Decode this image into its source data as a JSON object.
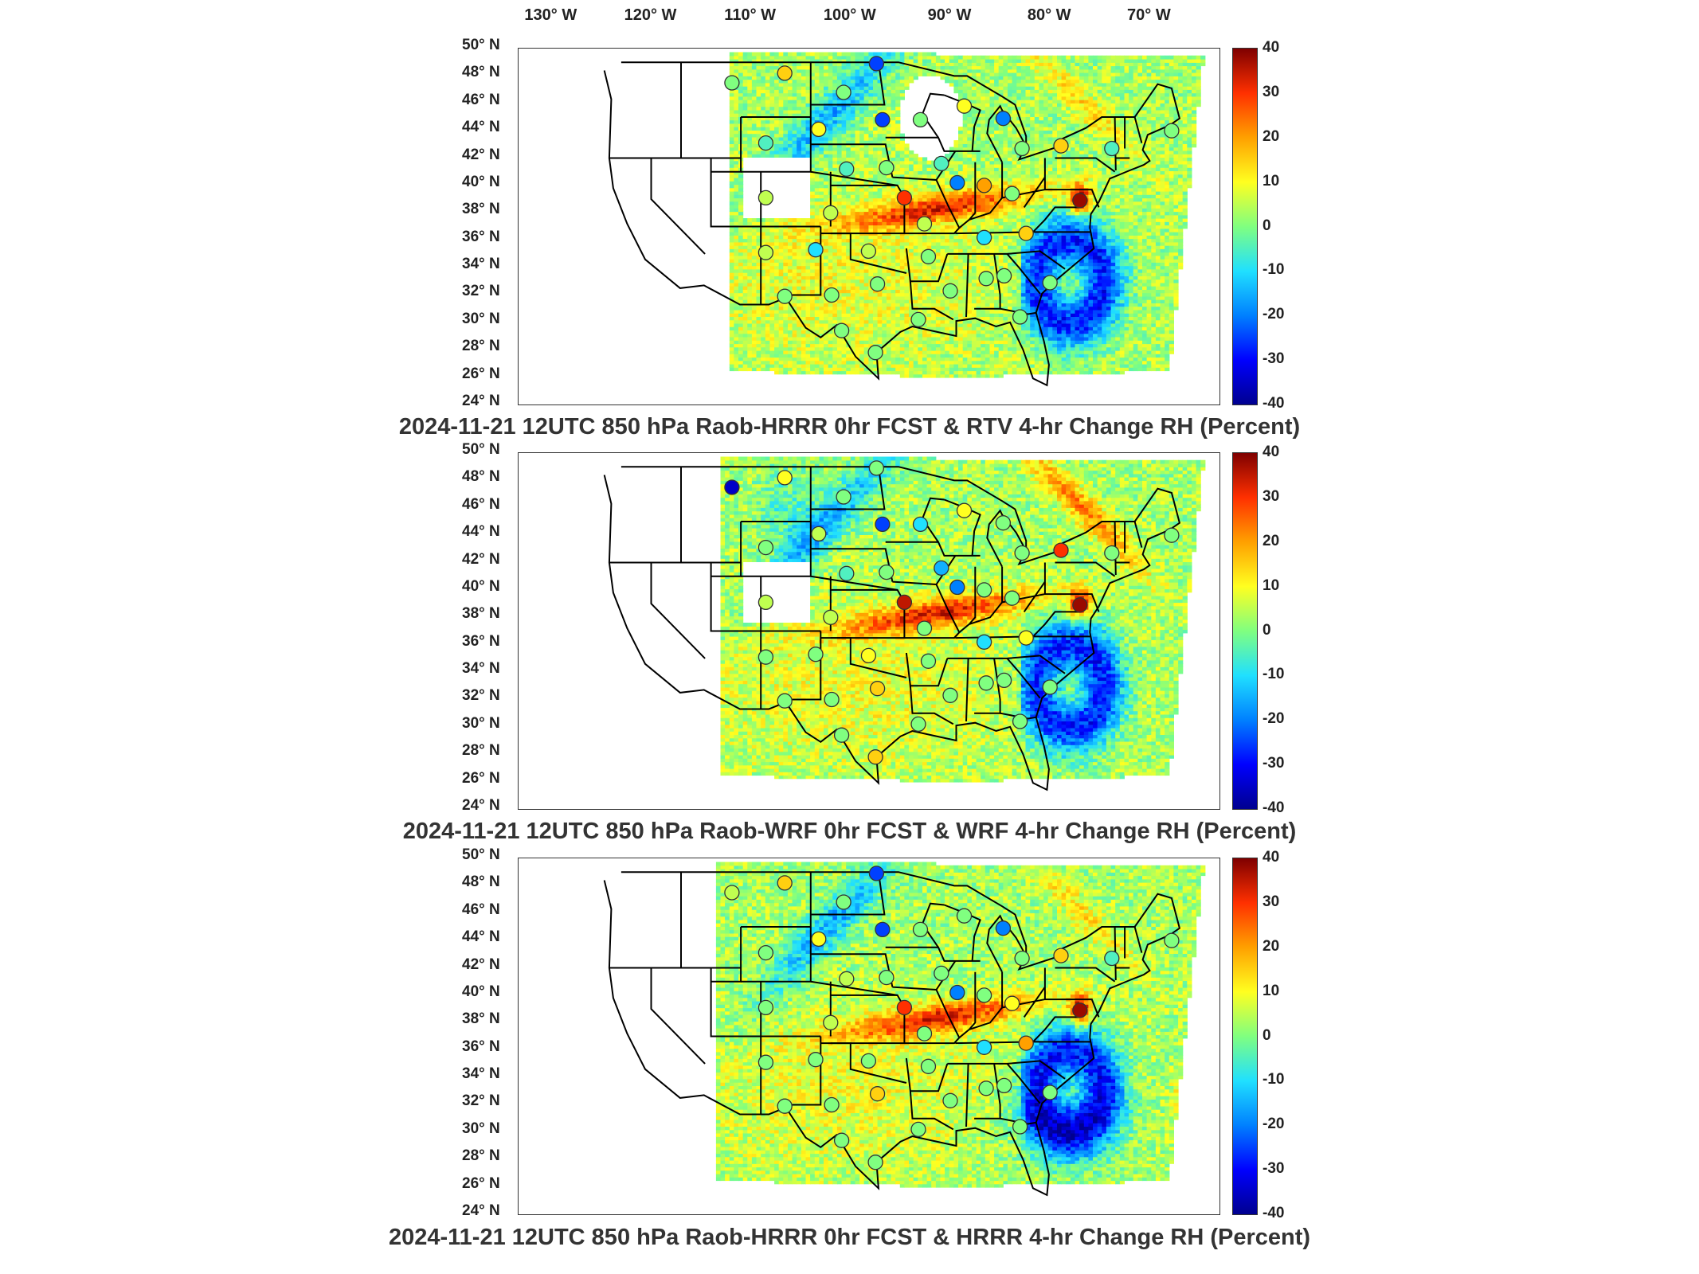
{
  "lon_labels": [
    "130° W",
    "120° W",
    "110° W",
    "100° W",
    "90° W",
    "80° W",
    "70° W"
  ],
  "lat_labels": [
    "50° N",
    "48° N",
    "46° N",
    "44° N",
    "42° N",
    "40° N",
    "38° N",
    "36° N",
    "34° N",
    "32° N",
    "30° N",
    "28° N",
    "26° N",
    "24° N"
  ],
  "colorbar": {
    "ticks": [
      "40",
      "30",
      "20",
      "10",
      "0",
      "-10",
      "-20",
      "-30",
      "-40"
    ],
    "colors": [
      "#7f0000",
      "#ff3000",
      "#ffa000",
      "#ffff20",
      "#80ff80",
      "#20e0ff",
      "#0080ff",
      "#0000ff",
      "#00008f"
    ]
  },
  "panels": [
    {
      "title": "2024-11-21 12UTC 850 hPa Raob-HRRR 0hr FCST & RTV 4-hr Change RH (Percent)"
    },
    {
      "title": "2024-11-21 12UTC 850 hPa Raob-WRF 0hr FCST & WRF 4-hr Change RH (Percent)"
    },
    {
      "title": "2024-11-21 12UTC 850 hPa Raob-HRRR 0hr FCST & HRRR 4-hr Change RH (Percent)"
    }
  ],
  "stations": [
    {
      "lon": -111.9,
      "lat": 47.5,
      "values": [
        0,
        -35,
        5
      ]
    },
    {
      "lon": -106.6,
      "lat": 48.2,
      "values": [
        15,
        10,
        15
      ]
    },
    {
      "lon": -97.4,
      "lat": 48.9,
      "values": [
        -25,
        0,
        -25
      ]
    },
    {
      "lon": -100.7,
      "lat": 46.8,
      "values": [
        0,
        0,
        0
      ]
    },
    {
      "lon": -96.8,
      "lat": 44.8,
      "values": [
        -25,
        -25,
        -25
      ]
    },
    {
      "lon": -93.0,
      "lat": 44.8,
      "values": [
        0,
        -10,
        0
      ]
    },
    {
      "lon": -88.6,
      "lat": 45.8,
      "values": [
        10,
        10,
        0
      ]
    },
    {
      "lon": -84.7,
      "lat": 44.9,
      "values": [
        -20,
        0,
        -20
      ]
    },
    {
      "lon": -82.8,
      "lat": 42.7,
      "values": [
        0,
        0,
        0
      ]
    },
    {
      "lon": -78.9,
      "lat": 42.9,
      "values": [
        15,
        30,
        15
      ]
    },
    {
      "lon": -73.8,
      "lat": 42.7,
      "values": [
        -5,
        0,
        -5
      ]
    },
    {
      "lon": -108.5,
      "lat": 43.1,
      "values": [
        -5,
        0,
        0
      ]
    },
    {
      "lon": -103.2,
      "lat": 44.1,
      "values": [
        10,
        5,
        10
      ]
    },
    {
      "lon": -100.4,
      "lat": 41.2,
      "values": [
        -5,
        -5,
        5
      ]
    },
    {
      "lon": -96.4,
      "lat": 41.3,
      "values": [
        0,
        0,
        0
      ]
    },
    {
      "lon": -90.9,
      "lat": 41.6,
      "values": [
        -5,
        -15,
        0
      ]
    },
    {
      "lon": -89.3,
      "lat": 40.2,
      "values": [
        -20,
        -20,
        -20
      ]
    },
    {
      "lon": -86.6,
      "lat": 40.0,
      "values": [
        20,
        0,
        0
      ]
    },
    {
      "lon": -83.8,
      "lat": 39.4,
      "values": [
        0,
        0,
        10
      ]
    },
    {
      "lon": -77.0,
      "lat": 38.9,
      "values": [
        38,
        38,
        38
      ]
    },
    {
      "lon": -108.5,
      "lat": 39.1,
      "values": [
        5,
        5,
        0
      ]
    },
    {
      "lon": -102.0,
      "lat": 38.0,
      "values": [
        5,
        5,
        5
      ]
    },
    {
      "lon": -94.6,
      "lat": 39.1,
      "values": [
        30,
        35,
        30
      ]
    },
    {
      "lon": -92.6,
      "lat": 37.2,
      "values": [
        5,
        0,
        0
      ]
    },
    {
      "lon": -86.6,
      "lat": 36.2,
      "values": [
        -10,
        -10,
        -10
      ]
    },
    {
      "lon": -82.4,
      "lat": 36.5,
      "values": [
        15,
        10,
        20
      ]
    },
    {
      "lon": -108.5,
      "lat": 35.1,
      "values": [
        5,
        0,
        0
      ]
    },
    {
      "lon": -103.5,
      "lat": 35.3,
      "values": [
        -10,
        0,
        0
      ]
    },
    {
      "lon": -98.2,
      "lat": 35.2,
      "values": [
        5,
        10,
        0
      ]
    },
    {
      "lon": -92.2,
      "lat": 34.8,
      "values": [
        0,
        0,
        0
      ]
    },
    {
      "lon": -86.4,
      "lat": 33.2,
      "values": [
        0,
        0,
        0
      ]
    },
    {
      "lon": -84.6,
      "lat": 33.4,
      "values": [
        0,
        0,
        0
      ]
    },
    {
      "lon": -106.6,
      "lat": 31.9,
      "values": [
        0,
        0,
        0
      ]
    },
    {
      "lon": -101.9,
      "lat": 32.0,
      "values": [
        0,
        0,
        0
      ]
    },
    {
      "lon": -97.3,
      "lat": 32.8,
      "values": [
        0,
        15,
        15
      ]
    },
    {
      "lon": -90.0,
      "lat": 32.3,
      "values": [
        0,
        0,
        0
      ]
    },
    {
      "lon": -80.0,
      "lat": 32.9,
      "values": [
        0,
        0,
        0
      ]
    },
    {
      "lon": -100.9,
      "lat": 29.4,
      "values": [
        0,
        0,
        0
      ]
    },
    {
      "lon": -97.5,
      "lat": 27.8,
      "values": [
        0,
        15,
        0
      ]
    },
    {
      "lon": -93.2,
      "lat": 30.2,
      "values": [
        0,
        0,
        0
      ]
    },
    {
      "lon": -83.0,
      "lat": 30.4,
      "values": [
        0,
        0,
        0
      ]
    },
    {
      "lon": -67.8,
      "lat": 44.0,
      "values": [
        0,
        0,
        0
      ]
    }
  ]
}
